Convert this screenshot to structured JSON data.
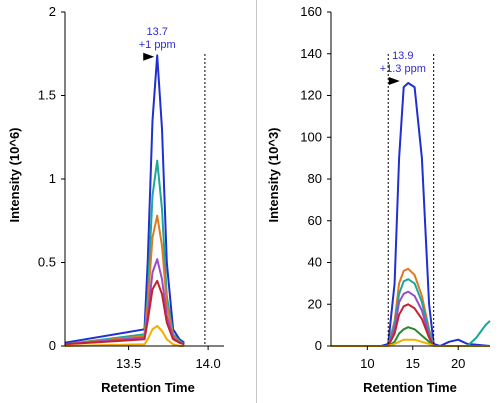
{
  "colors": {
    "axis": "#000000",
    "annotation_text": "#2b2bd6",
    "series": {
      "blue": "#1f2fd0",
      "teal": "#1aa89a",
      "orange": "#e07a22",
      "purple": "#9a4ccc",
      "red": "#c2242e",
      "green": "#2a8a2a",
      "yellow": "#f0b000"
    }
  },
  "chart_data": [
    {
      "type": "line",
      "title": "",
      "xlabel": "Retention Time",
      "ylabel": "Intensity (10^6)",
      "xlim": [
        13.1,
        14.1
      ],
      "ylim": [
        0,
        2
      ],
      "x_ticks": [
        13.5,
        14.0
      ],
      "x_tick_labels": [
        "13.5",
        "14.0"
      ],
      "y_ticks": [
        0,
        0.5,
        1,
        1.5,
        2
      ],
      "y_tick_labels": [
        "0",
        "0.5",
        "1",
        "1.5",
        "2"
      ],
      "grid": false,
      "legend": "none",
      "annotation": {
        "line1": "13.7",
        "line2": "+1 ppm",
        "x": 13.68,
        "y": 1.72
      },
      "boundary_lines": [
        13.98
      ],
      "series": [
        {
          "color_key": "blue",
          "x": [
            13.1,
            13.6,
            13.62,
            13.65,
            13.68,
            13.71,
            13.74,
            13.78,
            13.82,
            13.85
          ],
          "values": [
            0.02,
            0.1,
            0.5,
            1.35,
            1.74,
            1.3,
            0.5,
            0.1,
            0.04,
            0.02
          ]
        },
        {
          "color_key": "teal",
          "x": [
            13.1,
            13.6,
            13.62,
            13.65,
            13.68,
            13.71,
            13.74,
            13.78,
            13.82,
            13.85
          ],
          "values": [
            0.01,
            0.07,
            0.3,
            0.9,
            1.11,
            0.82,
            0.3,
            0.07,
            0.03,
            0.01
          ]
        },
        {
          "color_key": "orange",
          "x": [
            13.1,
            13.6,
            13.62,
            13.65,
            13.68,
            13.71,
            13.74,
            13.78,
            13.82,
            13.85
          ],
          "values": [
            0.01,
            0.06,
            0.25,
            0.65,
            0.78,
            0.6,
            0.25,
            0.06,
            0.02,
            0.01
          ]
        },
        {
          "color_key": "purple",
          "x": [
            13.1,
            13.6,
            13.62,
            13.65,
            13.68,
            13.71,
            13.74,
            13.78,
            13.82,
            13.85
          ],
          "values": [
            0.01,
            0.05,
            0.18,
            0.44,
            0.52,
            0.4,
            0.18,
            0.05,
            0.02,
            0.01
          ]
        },
        {
          "color_key": "red",
          "x": [
            13.1,
            13.6,
            13.62,
            13.65,
            13.68,
            13.71,
            13.74,
            13.78,
            13.82,
            13.85
          ],
          "values": [
            0.01,
            0.04,
            0.15,
            0.34,
            0.39,
            0.31,
            0.14,
            0.04,
            0.02,
            0.01
          ]
        },
        {
          "color_key": "yellow",
          "x": [
            13.1,
            13.6,
            13.62,
            13.65,
            13.68,
            13.71,
            13.74,
            13.78,
            13.82,
            13.85
          ],
          "values": [
            0.0,
            0.01,
            0.04,
            0.1,
            0.12,
            0.09,
            0.04,
            0.01,
            0.0,
            0.0
          ]
        }
      ]
    },
    {
      "type": "line",
      "title": "",
      "xlabel": "Retention Time",
      "ylabel": "Intensity (10^3)",
      "xlim": [
        6,
        23.5
      ],
      "ylim": [
        0,
        160
      ],
      "x_ticks": [
        10,
        15,
        20
      ],
      "x_tick_labels": [
        "10",
        "15",
        "20"
      ],
      "y_ticks": [
        0,
        20,
        40,
        60,
        80,
        100,
        120,
        140,
        160
      ],
      "y_tick_labels": [
        "0",
        "20",
        "40",
        "60",
        "80",
        "100",
        "120",
        "140",
        "160"
      ],
      "grid": false,
      "legend": "none",
      "annotation": {
        "line1": "13.9",
        "line2": "+1.3 ppm",
        "x": 13.9,
        "y": 126
      },
      "boundary_lines": [
        12.3,
        17.3
      ],
      "series": [
        {
          "color_key": "blue",
          "x": [
            6,
            11.5,
            12.3,
            13,
            13.5,
            14,
            14.5,
            15.2,
            16,
            16.8,
            17.3,
            18,
            19,
            20,
            21,
            23.5
          ],
          "values": [
            0,
            0,
            1,
            30,
            90,
            124,
            126,
            124,
            90,
            20,
            1,
            0,
            2,
            3,
            1,
            0
          ]
        },
        {
          "color_key": "orange",
          "x": [
            6,
            11.5,
            12.3,
            13,
            13.5,
            14,
            14.5,
            15.2,
            16,
            16.8,
            17.3,
            18,
            23.5
          ],
          "values": [
            0,
            0,
            0,
            12,
            30,
            36,
            37,
            34,
            24,
            8,
            0,
            0,
            0
          ]
        },
        {
          "color_key": "teal",
          "x": [
            6,
            11.5,
            12.3,
            13,
            13.5,
            14,
            14.5,
            15.2,
            16,
            16.8,
            17.3,
            18,
            21,
            22,
            23,
            23.5
          ],
          "values": [
            0,
            0,
            0,
            10,
            25,
            31,
            32,
            30,
            21,
            7,
            0,
            0,
            0,
            4,
            10,
            12
          ]
        },
        {
          "color_key": "purple",
          "x": [
            6,
            11.5,
            12.3,
            13,
            13.5,
            14,
            14.5,
            15.2,
            16,
            16.8,
            17.3,
            18,
            23.5
          ],
          "values": [
            0,
            0,
            0,
            8,
            21,
            25,
            26,
            24,
            17,
            5,
            0,
            0,
            0
          ]
        },
        {
          "color_key": "red",
          "x": [
            6,
            11.5,
            12.3,
            13,
            13.5,
            14,
            14.5,
            15.2,
            16,
            16.8,
            17.3,
            18,
            23.5
          ],
          "values": [
            0,
            0,
            0,
            6,
            15,
            19,
            20,
            18,
            13,
            4,
            0,
            0,
            0
          ]
        },
        {
          "color_key": "green",
          "x": [
            6,
            11.5,
            12.3,
            13,
            13.5,
            14,
            14.5,
            15.2,
            16,
            16.8,
            17.3,
            18,
            23.5
          ],
          "values": [
            0,
            0,
            0,
            2,
            6,
            8,
            9,
            8,
            5,
            2,
            0,
            0,
            0
          ]
        },
        {
          "color_key": "yellow",
          "x": [
            6,
            11.5,
            12.3,
            13,
            13.5,
            14,
            14.5,
            15.2,
            16,
            16.8,
            17.3,
            18,
            23.5
          ],
          "values": [
            0,
            0,
            0,
            1,
            2,
            3,
            3,
            3,
            2,
            1,
            0,
            0,
            0
          ]
        }
      ]
    }
  ]
}
